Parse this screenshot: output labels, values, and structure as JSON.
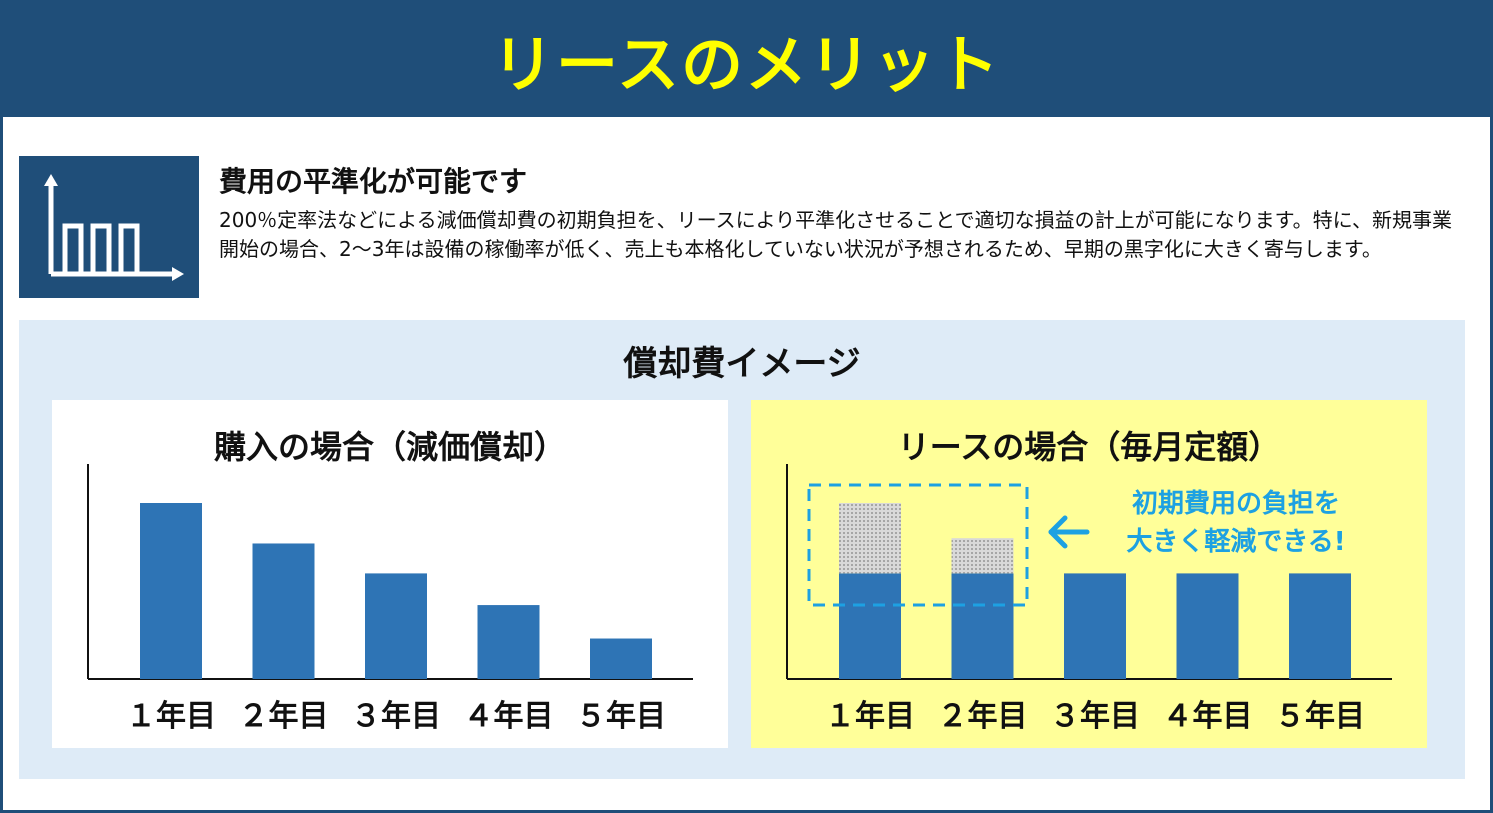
{
  "header": {
    "title": "リースのメリット"
  },
  "intro": {
    "icon": "bar-chart-icon",
    "title": "費用の平準化が可能です",
    "text": "200％定率法などによる減価償却費の初期負担を、リースにより平準化させることで適切な損益の計上が可能になります。特に、新規事業開始の場合、2〜3年は設備の稼働率が低く、売上も本格化していない状況が予想されるため、早期の黒字化に大きく寄与します。"
  },
  "image_panel": {
    "title": "償却費イメージ"
  },
  "colors": {
    "header_bg": "#1f4e79",
    "header_text": "#ffff00",
    "bar": "#2e74b5",
    "initial_cost": "#bfbfbf",
    "callout": "#1da1e2",
    "panel_bg": "#deebf7",
    "lease_card_bg": "#ffff99"
  },
  "chart_data": [
    {
      "type": "bar",
      "title": "購入の場合（減価償却）",
      "categories": [
        "１年目",
        "２年目",
        "３年目",
        "４年目",
        "５年目"
      ],
      "values": [
        100,
        77,
        60,
        42,
        23
      ]
    },
    {
      "type": "bar",
      "title": "リースの場合（毎月定額）",
      "categories": [
        "１年目",
        "２年目",
        "３年目",
        "４年目",
        "５年目"
      ],
      "series": [
        {
          "values": [
            60,
            60,
            60,
            60,
            60
          ]
        },
        {
          "values": [
            40,
            20,
            0,
            0,
            0
          ]
        }
      ],
      "callout": [
        "初期費用の負担を",
        "大きく軽減できる!"
      ]
    }
  ]
}
